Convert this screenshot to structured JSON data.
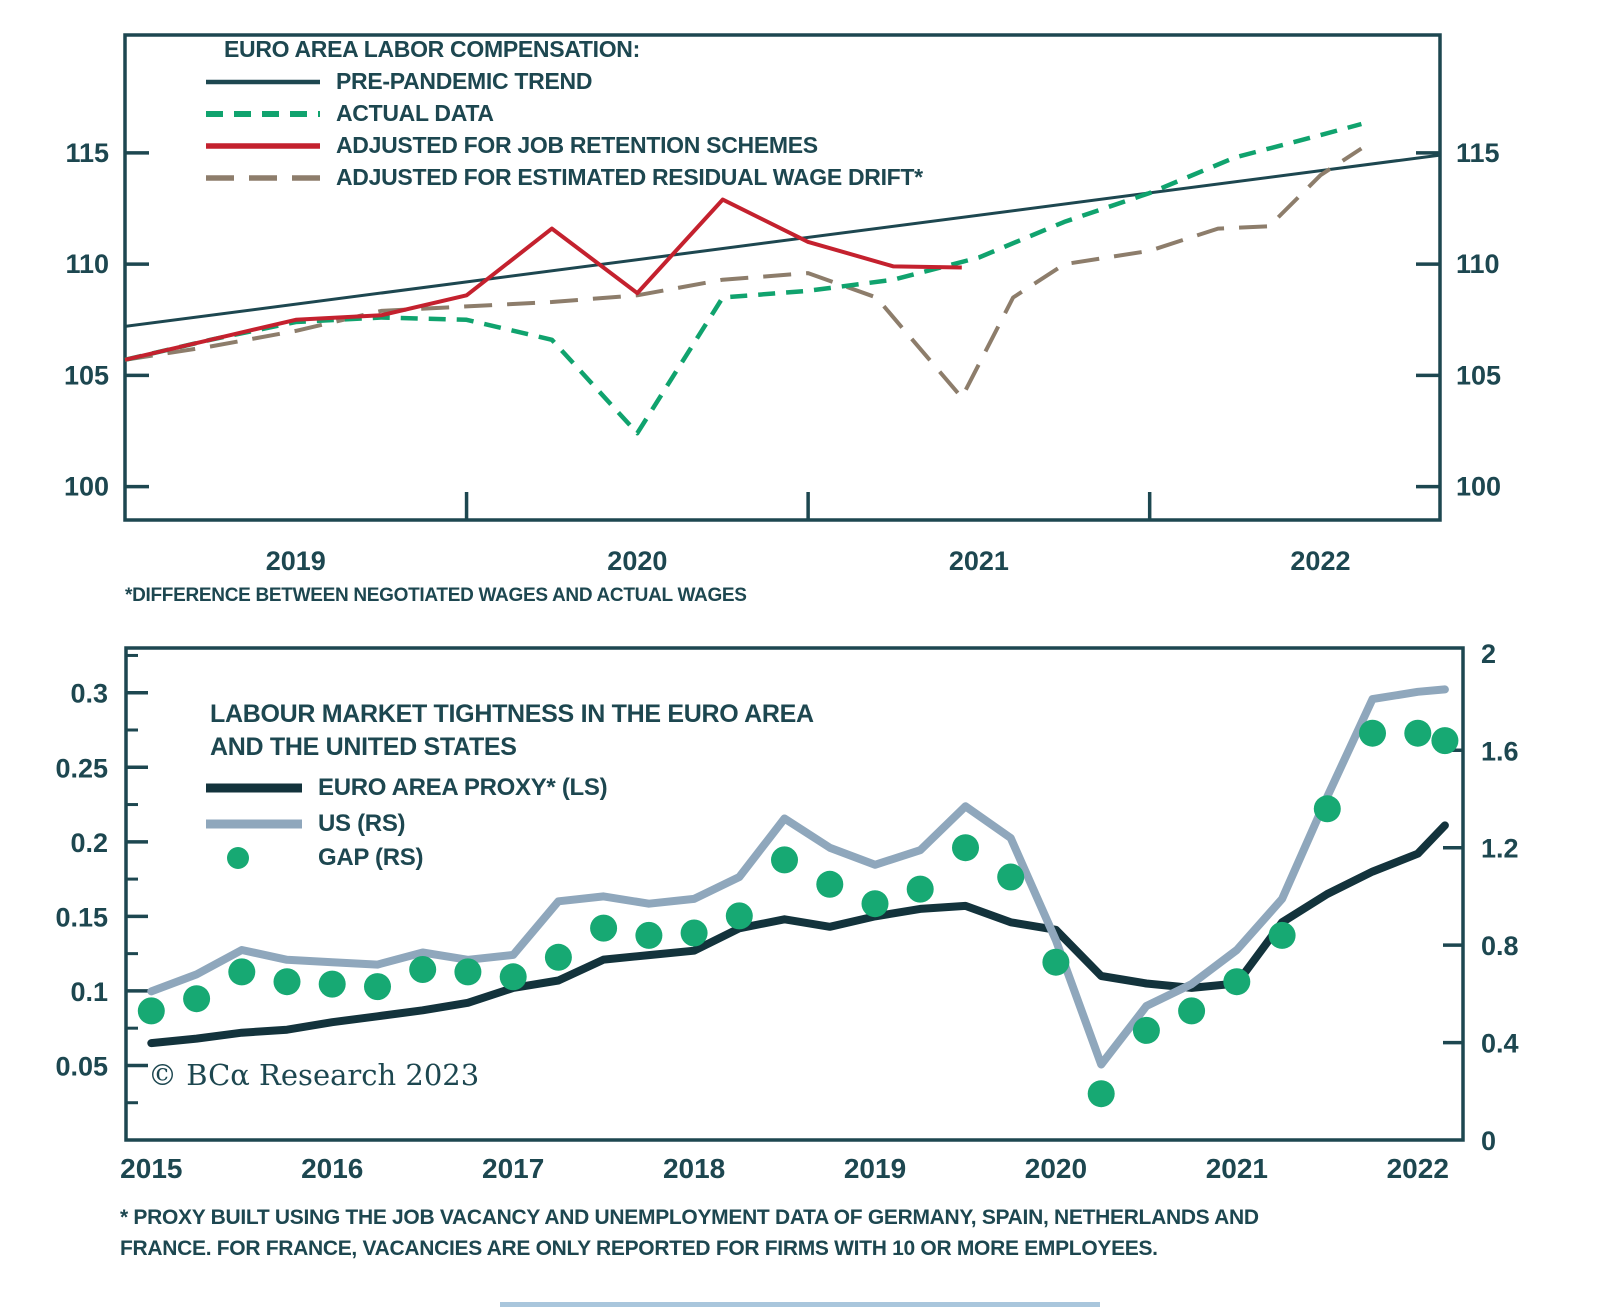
{
  "colors": {
    "text": "#1d4750",
    "axis": "#1d4750",
    "trend": "#1d4750",
    "actual": "#10a36e",
    "job_retention": "#c4212e",
    "wage_drift": "#8d7d6b",
    "euro_proxy": "#13333c",
    "us": "#8fa7bc",
    "gap_dot": "#17a973",
    "crop_line": "#a9c6dc"
  },
  "chart_data": [
    {
      "id": "euro-area-labor-compensation",
      "type": "line",
      "legend_title": "EURO AREA LABOR COMPENSATION:",
      "legend_position": "top-left-inside",
      "grid": false,
      "xlim": [
        2019.0,
        2022.85
      ],
      "ylim": [
        98.5,
        120.3
      ],
      "yticks": [
        100,
        105,
        110,
        115
      ],
      "ytick_labels": [
        "100",
        "105",
        "110",
        "115"
      ],
      "xticks": [
        2020,
        2021,
        2022
      ],
      "x_year_labels": [
        "2019",
        "2020",
        "2021",
        "2022"
      ],
      "x_year_label_positions": [
        2019.5,
        2020.5,
        2021.5,
        2022.5
      ],
      "series": [
        {
          "name": "PRE-PANDEMIC TREND",
          "color": "#1d4750",
          "width": 3,
          "dash": null,
          "x": [
            2019.0,
            2022.85
          ],
          "values": [
            107.2,
            114.9
          ]
        },
        {
          "name": "ACTUAL DATA",
          "color": "#10a36e",
          "width": 4.5,
          "dash": "17 11",
          "x": [
            2019.0,
            2019.25,
            2019.5,
            2019.75,
            2020.0,
            2020.25,
            2020.5,
            2020.75,
            2021.0,
            2021.25,
            2021.5,
            2021.75,
            2022.0,
            2022.25,
            2022.5,
            2022.62
          ],
          "values": [
            105.7,
            106.6,
            107.4,
            107.6,
            107.5,
            106.6,
            102.4,
            108.5,
            108.8,
            109.3,
            110.3,
            111.9,
            113.2,
            114.8,
            115.8,
            116.3
          ]
        },
        {
          "name": "ADJUSTED FOR JOB RETENTION SCHEMES",
          "color": "#c4212e",
          "width": 4,
          "dash": null,
          "x": [
            2019.0,
            2019.25,
            2019.5,
            2019.75,
            2020.0,
            2020.25,
            2020.5,
            2020.75,
            2021.0,
            2021.25,
            2021.45
          ],
          "values": [
            105.7,
            106.6,
            107.5,
            107.7,
            108.6,
            111.6,
            108.7,
            112.9,
            111.0,
            109.9,
            109.85
          ]
        },
        {
          "name": "ADJUSTED FOR ESTIMATED RESIDUAL WAGE DRIFT*",
          "color": "#8d7d6b",
          "width": 4,
          "dash": "28 15",
          "x": [
            2019.0,
            2019.25,
            2019.5,
            2019.75,
            2020.0,
            2020.25,
            2020.5,
            2020.75,
            2021.0,
            2021.2,
            2021.45,
            2021.6,
            2021.75,
            2022.0,
            2022.2,
            2022.35,
            2022.5,
            2022.62
          ],
          "values": [
            105.7,
            106.3,
            107.0,
            107.9,
            108.1,
            108.3,
            108.6,
            109.3,
            109.6,
            108.5,
            104.0,
            108.5,
            110.0,
            110.6,
            111.6,
            111.7,
            114.0,
            115.2
          ]
        }
      ],
      "footnote": "*DIFFERENCE BETWEEN NEGOTIATED WAGES AND ACTUAL WAGES"
    },
    {
      "id": "labour-market-tightness",
      "type": "line-scatter-dual-axis",
      "title_lines": [
        "LABOUR MARKET TIGHTNESS IN THE EURO AREA",
        "AND THE UNITED STATES"
      ],
      "grid": false,
      "xlim": [
        2014.86,
        2022.25
      ],
      "x_year_labels": [
        "2015",
        "2016",
        "2017",
        "2018",
        "2019",
        "2020",
        "2021",
        "2022"
      ],
      "x_year_label_positions": [
        2015,
        2016,
        2017,
        2018,
        2019,
        2020,
        2021,
        2022
      ],
      "left_axis": {
        "range": [
          0,
          0.33
        ],
        "ticks": [
          0.05,
          0.1,
          0.15,
          0.2,
          0.25,
          0.3
        ],
        "tick_labels": [
          "0.05",
          "0.1",
          "0.15",
          "0.2",
          "0.25",
          "0.3"
        ],
        "minor_ticks": [
          0.025,
          0.075,
          0.125,
          0.175,
          0.225,
          0.275,
          0.325
        ]
      },
      "right_axis": {
        "range": [
          0,
          2.02
        ],
        "ticks": [
          0,
          0.4,
          0.8,
          1.2,
          1.6,
          2
        ],
        "tick_labels": [
          "0",
          "0.4",
          "0.8",
          "1.2",
          "1.6",
          "2"
        ]
      },
      "x_quarterly": [
        2015.0,
        2015.25,
        2015.5,
        2015.75,
        2016.0,
        2016.25,
        2016.5,
        2016.75,
        2017.0,
        2017.25,
        2017.5,
        2017.75,
        2018.0,
        2018.25,
        2018.5,
        2018.75,
        2019.0,
        2019.25,
        2019.5,
        2019.75,
        2020.0,
        2020.25,
        2020.5,
        2020.75,
        2021.0,
        2021.25,
        2021.5,
        2021.75,
        2022.0,
        2022.15
      ],
      "series": [
        {
          "name": "EURO AREA PROXY* (LS)",
          "axis": "left",
          "color": "#13333c",
          "width": 8,
          "values": [
            0.065,
            0.068,
            0.072,
            0.074,
            0.079,
            0.083,
            0.087,
            0.092,
            0.102,
            0.107,
            0.121,
            0.124,
            0.127,
            0.142,
            0.148,
            0.143,
            0.15,
            0.155,
            0.157,
            0.146,
            0.141,
            0.11,
            0.105,
            0.102,
            0.105,
            0.146,
            0.165,
            0.18,
            0.192,
            0.211
          ]
        },
        {
          "name": "US (RS)",
          "axis": "right",
          "color": "#8fa7bc",
          "width": 8,
          "values": [
            0.61,
            0.68,
            0.78,
            0.74,
            0.73,
            0.72,
            0.77,
            0.74,
            0.76,
            0.98,
            1.0,
            0.97,
            0.99,
            1.08,
            1.32,
            1.2,
            1.13,
            1.19,
            1.37,
            1.24,
            0.82,
            0.31,
            0.55,
            0.64,
            0.78,
            0.99,
            1.41,
            1.81,
            1.84,
            1.85
          ]
        }
      ],
      "scatter": {
        "name": "GAP (RS)",
        "axis": "right",
        "color": "#17a973",
        "radius": 13.5,
        "values": [
          0.53,
          0.58,
          0.69,
          0.65,
          0.64,
          0.63,
          0.7,
          0.69,
          0.67,
          0.75,
          0.87,
          0.84,
          0.85,
          0.92,
          1.15,
          1.05,
          0.97,
          1.03,
          1.2,
          1.08,
          0.73,
          0.19,
          0.45,
          0.53,
          0.65,
          0.84,
          1.36,
          1.67,
          1.67,
          1.64
        ]
      },
      "copyright": "© BCα Research 2023",
      "footnote_lines": [
        "* PROXY BUILT USING THE JOB VACANCY AND UNEMPLOYMENT DATA OF GERMANY, SPAIN, NETHERLANDS AND",
        "FRANCE. FOR FRANCE, VACANCIES ARE ONLY REPORTED FOR FIRMS WITH 10 OR MORE EMPLOYEES."
      ]
    }
  ]
}
